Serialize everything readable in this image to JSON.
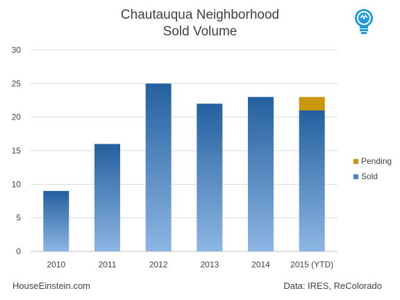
{
  "chart_data": {
    "type": "bar",
    "title_line1": "Chautauqua Neighborhood",
    "title_line2": "Sold Volume",
    "categories": [
      "2010",
      "2011",
      "2012",
      "2013",
      "2014",
      "2015 (YTD)"
    ],
    "series": [
      {
        "name": "Sold",
        "values": [
          9,
          16,
          25,
          22,
          23,
          21
        ],
        "color": "#2e6aa8"
      },
      {
        "name": "Pending",
        "values": [
          0,
          0,
          0,
          0,
          0,
          2
        ],
        "color": "#c9960c"
      }
    ],
    "stacked": true,
    "ylim": [
      0,
      30
    ],
    "yticks": [
      0,
      5,
      10,
      15,
      20,
      25,
      30
    ],
    "grid": true,
    "legend": "right"
  },
  "footer": {
    "source_left": "HouseEinstein.com",
    "source_right": "Data: IRES,  ReColorado"
  },
  "logo_icon": "lightbulb-icon"
}
